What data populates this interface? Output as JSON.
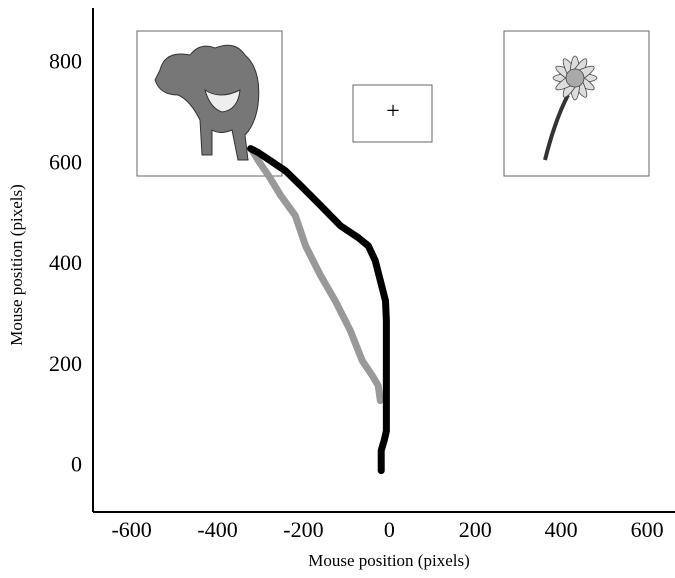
{
  "chart_data": {
    "type": "line",
    "xlabel": "Mouse position (pixels)",
    "ylabel": "Mouse position (pixels)",
    "fixation": "+",
    "xlim": [
      -690,
      665
    ],
    "ylim": [
      -90,
      910
    ],
    "xticks": [
      -600,
      -400,
      -200,
      0,
      200,
      400,
      600
    ],
    "yticks": [
      0,
      200,
      400,
      600,
      800
    ],
    "series": [
      {
        "color": "#000000",
        "x": [
          -19,
          -19,
          -12,
          -7,
          -7,
          -9,
          -21,
          -33,
          -49,
          -72,
          -114,
          -160,
          -207,
          -242,
          -277,
          -305,
          -323
        ],
        "values": [
          -8,
          32,
          52,
          71,
          290,
          329,
          369,
          409,
          438,
          454,
          478,
          518,
          558,
          587,
          607,
          623,
          631
        ]
      },
      {
        "color": "#999999",
        "x": [
          -21,
          -26,
          -40,
          -63,
          -91,
          -126,
          -160,
          -195,
          -219,
          -253,
          -281,
          -305,
          -319
        ],
        "values": [
          131,
          161,
          181,
          210,
          270,
          329,
          379,
          438,
          498,
          538,
          577,
          607,
          627
        ]
      }
    ]
  }
}
